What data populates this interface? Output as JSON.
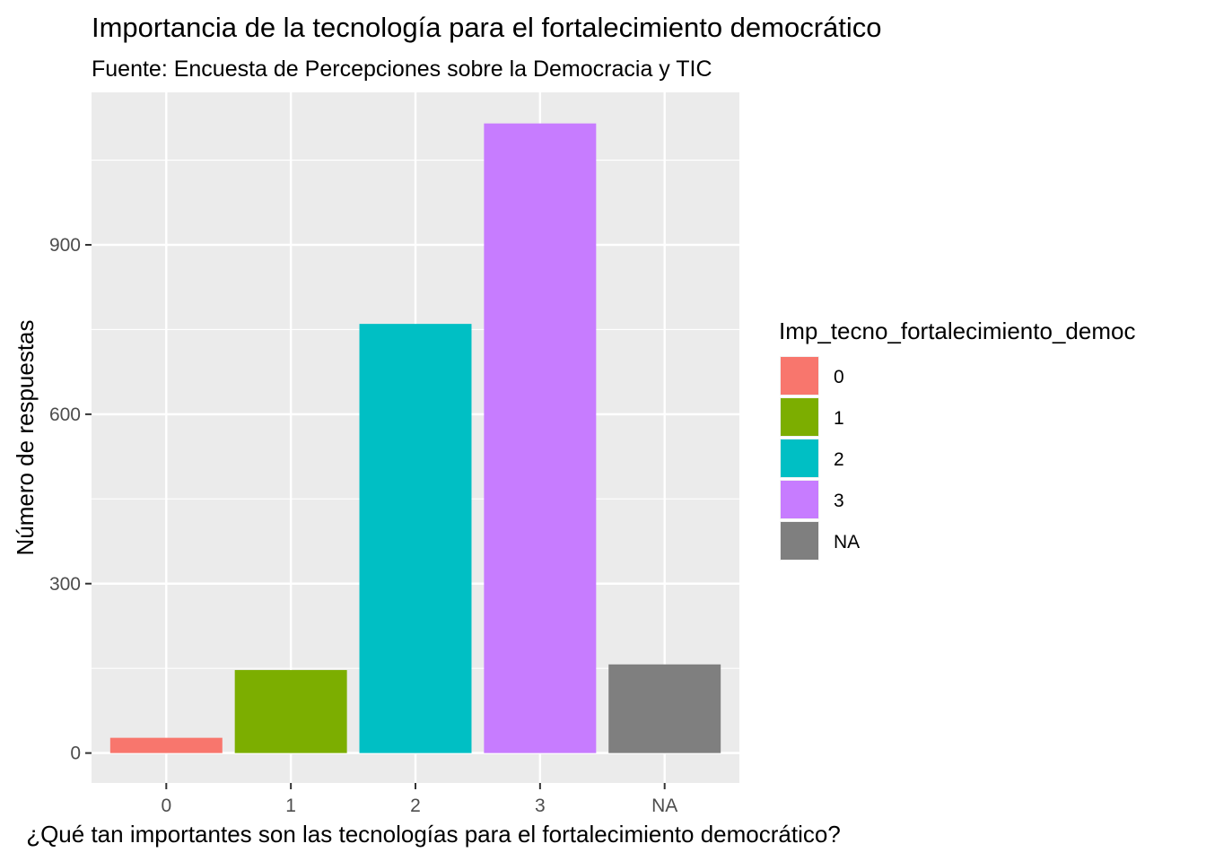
{
  "chart_data": {
    "type": "bar",
    "title": "Importancia de la tecnología para el fortalecimiento democrático",
    "subtitle": "Fuente: Encuesta de Percepciones sobre la Democracia y TIC",
    "xlabel": "¿Qué tan importantes son las tecnologías para el fortalecimiento democrático?",
    "ylabel": "Número de respuestas",
    "categories": [
      "0",
      "1",
      "2",
      "3",
      "NA"
    ],
    "values": [
      27,
      147,
      760,
      1115,
      157
    ],
    "colors": [
      "#F8766D",
      "#7CAE00",
      "#00BFC4",
      "#C77CFF",
      "#7F7F7F"
    ],
    "ylim": [
      -53,
      1170
    ],
    "y_ticks": [
      0,
      300,
      600,
      900
    ],
    "y_tick_labels": [
      "0",
      "300",
      "600",
      "900"
    ],
    "grid": true,
    "panel_background": "#EBEBEB",
    "legend": {
      "title": "Imp_tecno_fortalecimiento_democ",
      "position": "right",
      "entries": [
        "0",
        "1",
        "2",
        "3",
        "NA"
      ]
    }
  }
}
